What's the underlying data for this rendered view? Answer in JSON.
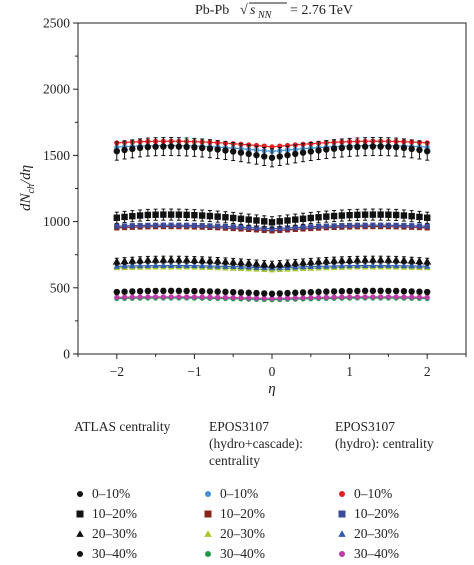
{
  "chart_data": {
    "type": "scatter",
    "title": "Pb-Pb",
    "title_energy": "= 2.76 TeV",
    "xlabel": "η",
    "ylabel_main": "dN",
    "ylabel_sub": "ch",
    "ylabel_tail": "/dη",
    "xlim": [
      -2.5,
      2.5
    ],
    "ylim": [
      0,
      2500
    ],
    "x_ticks": [
      -2,
      -1,
      0,
      1,
      2
    ],
    "y_ticks": [
      0,
      500,
      1000,
      1500,
      2000,
      2500
    ],
    "x_tick_labels": [
      "−2",
      "−1",
      "0",
      "1",
      "2"
    ],
    "y_tick_labels": [
      "0",
      "500",
      "1000",
      "1500",
      "2000",
      "2500"
    ],
    "grid": false,
    "eta": [
      -2.0,
      -1.9,
      -1.8,
      -1.7,
      -1.6,
      -1.5,
      -1.4,
      -1.3,
      -1.2,
      -1.1,
      -1.0,
      -0.9,
      -0.8,
      -0.7,
      -0.6,
      -0.5,
      -0.4,
      -0.3,
      -0.2,
      -0.1,
      0.0,
      0.1,
      0.2,
      0.3,
      0.4,
      0.5,
      0.6,
      0.7,
      0.8,
      0.9,
      1.0,
      1.1,
      1.2,
      1.3,
      1.4,
      1.5,
      1.6,
      1.7,
      1.8,
      1.9,
      2.0
    ],
    "series": [
      {
        "group": "atlas",
        "label": "0–10%",
        "color": "#111111",
        "marker": "circle",
        "center": 1482,
        "amp": 85,
        "err": 68
      },
      {
        "group": "atlas",
        "label": "10–20%",
        "color": "#111111",
        "marker": "square",
        "center": 995,
        "amp": 58,
        "err": 42
      },
      {
        "group": "atlas",
        "label": "20–30%",
        "color": "#111111",
        "marker": "triangle",
        "center": 675,
        "amp": 38,
        "err": 26
      },
      {
        "group": "atlas",
        "label": "30–40%",
        "color": "#111111",
        "marker": "circle",
        "center": 455,
        "amp": 22,
        "err": 17
      },
      {
        "group": "cascade",
        "label": "0–10%",
        "color": "#4a8fd0",
        "marker": "circle",
        "center": 1530,
        "amp": 45,
        "err": 0
      },
      {
        "group": "cascade",
        "label": "10–20%",
        "color": "#8b2418",
        "marker": "square",
        "center": 930,
        "amp": 32,
        "err": 0
      },
      {
        "group": "cascade",
        "label": "20–30%",
        "color": "#a8c62b",
        "marker": "triangle",
        "center": 635,
        "amp": 22,
        "err": 0
      },
      {
        "group": "cascade",
        "label": "30–40%",
        "color": "#1f9a4a",
        "marker": "circle",
        "center": 410,
        "amp": 13,
        "err": 0
      },
      {
        "group": "hydro",
        "label": "0–10%",
        "color": "#e02020",
        "marker": "circle",
        "center": 1565,
        "amp": 42,
        "err": 0
      },
      {
        "group": "hydro",
        "label": "10–20%",
        "color": "#3b4a9a",
        "marker": "square",
        "center": 945,
        "amp": 28,
        "err": 0
      },
      {
        "group": "hydro",
        "label": "20–30%",
        "color": "#2f5db0",
        "marker": "triangle",
        "center": 650,
        "amp": 18,
        "err": 0
      },
      {
        "group": "hydro",
        "label": "30–40%",
        "color": "#c03aaa",
        "marker": "circle",
        "center": 420,
        "amp": 12,
        "err": 0
      }
    ]
  },
  "legend": {
    "atlas_title": "ATLAS centrality",
    "cascade_title_1": "EPOS3107",
    "cascade_title_2": "(hydro+cascade):",
    "cascade_title_3": "centrality",
    "hydro_title_1": "EPOS3107",
    "hydro_title_2": "(hydro): centrality",
    "atlas_items": [
      {
        "label": "0–10%",
        "color": "#111111",
        "marker": "circle"
      },
      {
        "label": "10–20%",
        "color": "#111111",
        "marker": "square"
      },
      {
        "label": "20–30%",
        "color": "#111111",
        "marker": "triangle"
      },
      {
        "label": "30–40%",
        "color": "#111111",
        "marker": "circle"
      }
    ],
    "cascade_items": [
      {
        "label": "0–10%",
        "color": "#4a8fd0",
        "marker": "circle"
      },
      {
        "label": "10–20%",
        "color": "#8b2418",
        "marker": "square"
      },
      {
        "label": "20–30%",
        "color": "#a8c62b",
        "marker": "triangle"
      },
      {
        "label": "30–40%",
        "color": "#1f9a4a",
        "marker": "circle"
      }
    ],
    "hydro_items": [
      {
        "label": "0–10%",
        "color": "#e02020",
        "marker": "circle"
      },
      {
        "label": "10–20%",
        "color": "#3b4a9a",
        "marker": "square"
      },
      {
        "label": "20–30%",
        "color": "#2f5db0",
        "marker": "triangle"
      },
      {
        "label": "30–40%",
        "color": "#c03aaa",
        "marker": "circle"
      }
    ]
  }
}
